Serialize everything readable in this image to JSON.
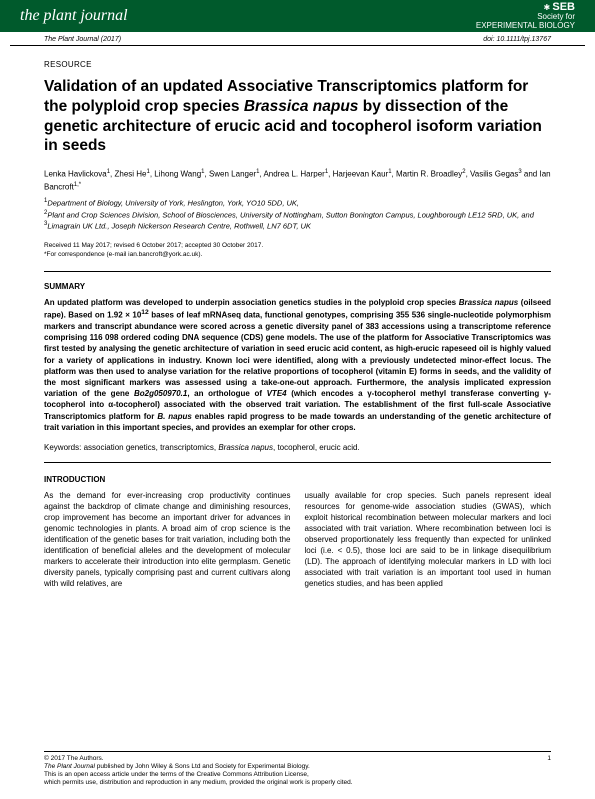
{
  "header": {
    "journal_name": "the plant journal",
    "society_abbr": "SEB",
    "society_full": "Society for\nEXPERIMENTAL BIOLOGY"
  },
  "meta": {
    "citation": "The Plant Journal (2017)",
    "doi": "doi: 10.1111/tpj.13767"
  },
  "article": {
    "type_label": "RESOURCE",
    "title_pre": "Validation of an updated Associative Transcriptomics platform for the polyploid crop species ",
    "title_species": "Brassica napus",
    "title_post": " by dissection of the genetic architecture of erucic acid and tocopherol isoform variation in seeds",
    "authors_html": "Lenka Havlickova<sup>1</sup>, Zhesi He<sup>1</sup>, Lihong Wang<sup>1</sup>, Swen Langer<sup>1</sup>, Andrea L. Harper<sup>1</sup>, Harjeevan Kaur<sup>1</sup>, Martin R. Broadley<sup>2</sup>, Vasilis Gegas<sup>3</sup> and Ian Bancroft<sup>1,*</sup>",
    "affiliations_html": "<sup>1</sup>Department of Biology, University of York, Heslington, York, YO10 5DD, UK,<br><sup>2</sup>Plant and Crop Sciences Division, School of Biosciences, University of Nottingham, Sutton Bonington Campus, Loughborough LE12 5RD, UK, and<br><sup>3</sup>Limagrain UK Ltd., Joseph Nickerson Research Centre, Rothwell, LN7 6DT, UK",
    "received": "Received 11 May 2017; revised 6 October 2017; accepted 30 October 2017.",
    "correspondence": "*For correspondence (e-mail ian.bancroft@york.ac.uk)."
  },
  "summary": {
    "heading": "SUMMARY",
    "text_html": "An updated platform was developed to underpin association genetics studies in the polyploid crop species <span class=\"species\">Brassica napus</span> (oilseed rape). Based on 1.92 × 10<sup>12</sup> bases of leaf mRNAseq data, functional genotypes, comprising 355 536 single-nucleotide polymorphism markers and transcript abundance were scored across a genetic diversity panel of 383 accessions using a transcriptome reference comprising 116 098 ordered coding DNA sequence (CDS) gene models. The use of the platform for Associative Transcriptomics was first tested by analysing the genetic architecture of variation in seed erucic acid content, as high-erucic rapeseed oil is highly valued for a variety of applications in industry. Known loci were identified, along with a previously undetected minor-effect locus. The platform was then used to analyse variation for the relative proportions of tocopherol (vitamin E) forms in seeds, and the validity of the most significant markers was assessed using a take-one-out approach. Furthermore, the analysis implicated expression variation of the gene <span class=\"species\">Bo2g050970.1</span>, an orthologue of <span class=\"species\">VTE4</span> (which encodes a γ-tocopherol methyl transferase converting γ-tocopherol into α-tocopherol) associated with the observed trait variation. The establishment of the first full-scale Associative Transcriptomics platform for <span class=\"species\">B. napus</span> enables rapid progress to be made towards an understanding of the genetic architecture of trait variation in this important species, and provides an exemplar for other crops.",
    "keywords_label": "Keywords:",
    "keywords_text": " association genetics, transcriptomics, ",
    "keywords_species": "Brassica napus",
    "keywords_tail": ", tocopherol, erucic acid."
  },
  "introduction": {
    "heading": "INTRODUCTION",
    "col1": "As the demand for ever-increasing crop productivity continues against the backdrop of climate change and diminishing resources, crop improvement has become an important driver for advances in genomic technologies in plants. A broad aim of crop science is the identification of the genetic bases for trait variation, including both the identification of beneficial alleles and the development of molecular markers to accelerate their introduction into elite germplasm. Genetic diversity panels, typically comprising past and current cultivars along with wild relatives, are",
    "col2": "usually available for crop species. Such panels represent ideal resources for genome-wide association studies (GWAS), which exploit historical recombination between molecular markers and loci associated with trait variation. Where recombination between loci is observed proportionately less frequently than expected for unlinked loci (i.e. < 0.5), those loci are said to be in linkage disequilibrium (LD). The approach of identifying molecular markers in LD with loci associated with trait variation is an important tool used in human genetics studies, and has been applied"
  },
  "footer": {
    "copyright": "© 2017 The Authors.",
    "line2_pre": "The Plant Journal",
    "line2_post": " published by John Wiley & Sons Ltd and Society for Experimental Biology.",
    "line3": "This is an open access article under the terms of the Creative Commons Attribution License,",
    "line4": "which permits use, distribution and reproduction in any medium, provided the original work is properly cited.",
    "page_number": "1"
  },
  "colors": {
    "header_bg": "#005a2c",
    "header_fg": "#ffffff",
    "text": "#000000",
    "page_bg": "#ffffff"
  }
}
